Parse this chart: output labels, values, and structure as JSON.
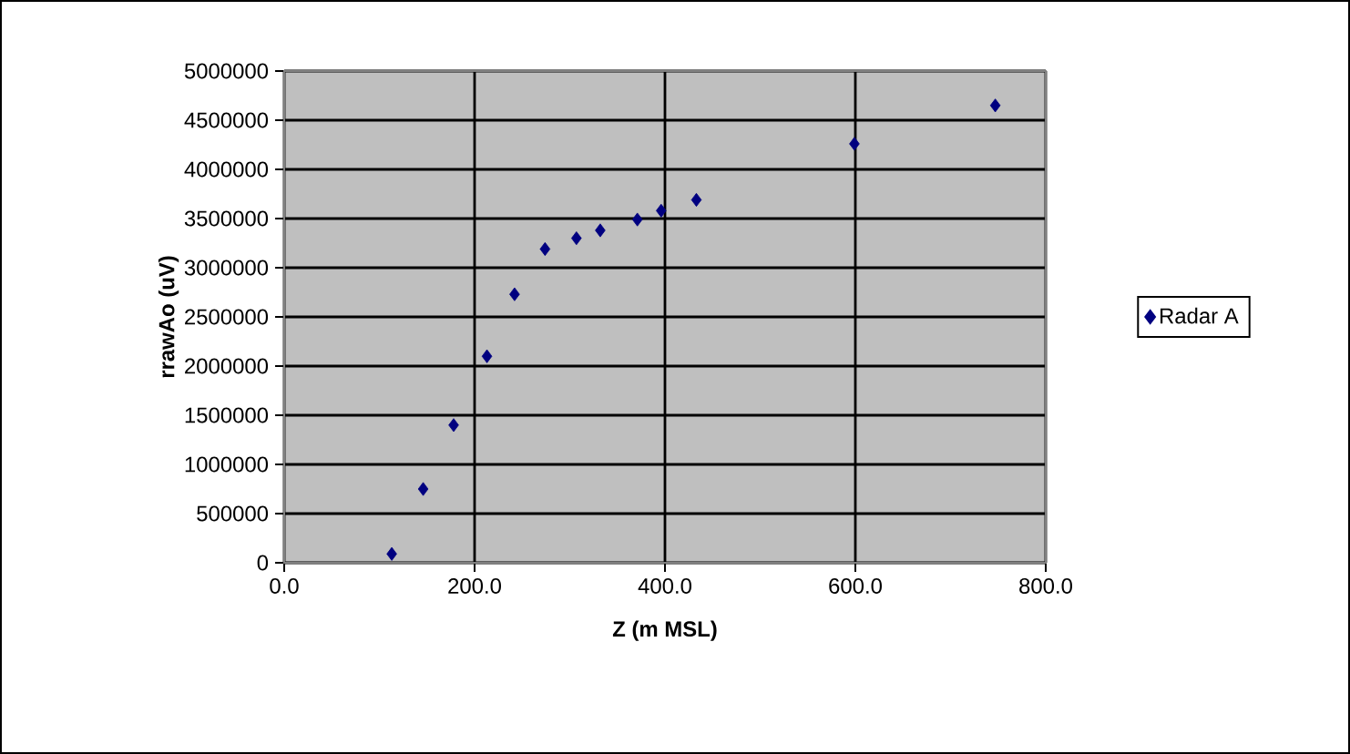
{
  "chart_data": {
    "type": "scatter",
    "xlabel": "Z (m MSL)",
    "ylabel": "rrawAo (uV)",
    "series": [
      {
        "name": "Radar A",
        "color": "#000080",
        "x": [
          113,
          146,
          178,
          213,
          242,
          274,
          307,
          332,
          371,
          396,
          433,
          599,
          747
        ],
        "values": [
          90000,
          750000,
          1400000,
          2100000,
          2730000,
          3190000,
          3300000,
          3380000,
          3490000,
          3580000,
          3690000,
          4260000,
          4650000
        ]
      }
    ],
    "xlim": [
      0,
      800
    ],
    "xticks": [
      {
        "value": 0,
        "label": "0.0"
      },
      {
        "value": 200,
        "label": "200.0"
      },
      {
        "value": 400,
        "label": "400.0"
      },
      {
        "value": 600,
        "label": "600.0"
      },
      {
        "value": 800,
        "label": "800.0"
      }
    ],
    "ylim": [
      0,
      5000000
    ],
    "yticks": [
      0,
      500000,
      1000000,
      1500000,
      2000000,
      2500000,
      3000000,
      3500000,
      4000000,
      4500000,
      5000000
    ],
    "grid": true,
    "legend": "right",
    "marker": "diamond"
  }
}
